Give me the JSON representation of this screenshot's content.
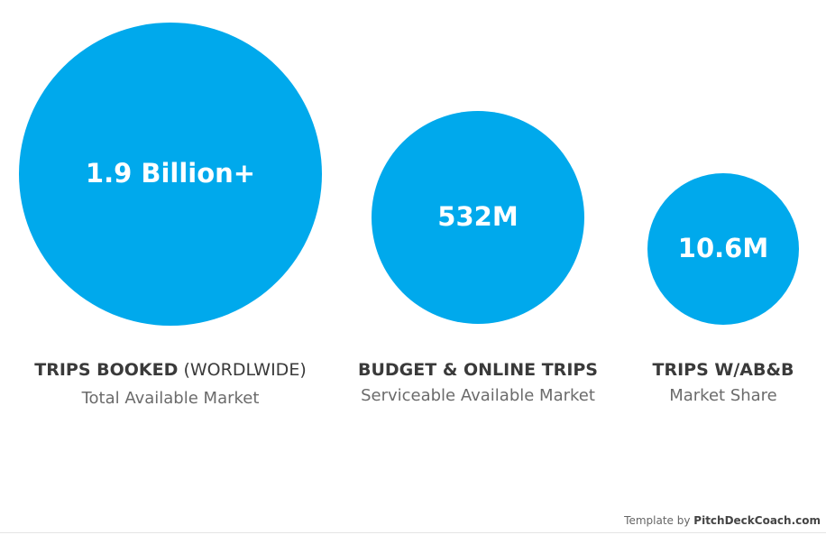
{
  "markets": [
    {
      "value": "1.9 Billion+",
      "title": "TRIPS BOOKED",
      "title_note": "(WORDLWIDE)",
      "subtitle": "Total Available Market"
    },
    {
      "value": "532M",
      "title": "BUDGET & ONLINE TRIPS",
      "subtitle": "Serviceable Available Market"
    },
    {
      "value": "10.6M",
      "title": "TRIPS W/AB&B",
      "subtitle": "Market Share"
    }
  ],
  "footer": {
    "prefix": "Template by",
    "brand": "PitchDeckCoach.com"
  }
}
